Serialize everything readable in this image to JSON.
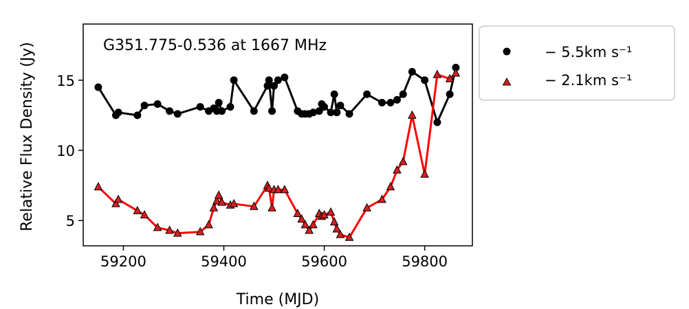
{
  "chart_data": {
    "type": "line",
    "title": "G351.775-0.536 at 1667 MHz",
    "xlabel": "Time (MJD)",
    "ylabel": "Relative Flux Density (Jy)",
    "xlim": [
      59120,
      59895
    ],
    "ylim": [
      3.2,
      19.0
    ],
    "xticks": [
      59200,
      59400,
      59600,
      59800
    ],
    "yticks": [
      5,
      10,
      15
    ],
    "grid": false,
    "legend_position": "outside-right-top",
    "series": [
      {
        "name": "− 5.5km s⁻¹",
        "color": "#000000",
        "marker": "circle",
        "x": [
          59150,
          59185,
          59190,
          59228,
          59242,
          59268,
          59292,
          59308,
          59353,
          59370,
          59380,
          59386,
          59390,
          59396,
          59413,
          59420,
          59460,
          59487,
          59490,
          59496,
          59500,
          59508,
          59521,
          59547,
          59555,
          59562,
          59570,
          59578,
          59590,
          59595,
          59600,
          59613,
          59620,
          59625,
          59632,
          59650,
          59685,
          59715,
          59732,
          59745,
          59757,
          59775,
          59800,
          59825,
          59850,
          59862
        ],
        "y": [
          14.5,
          12.5,
          12.7,
          12.5,
          13.2,
          13.3,
          12.8,
          12.6,
          13.1,
          12.8,
          13.0,
          12.8,
          13.4,
          12.8,
          13.1,
          15.0,
          12.8,
          14.6,
          15.0,
          12.8,
          14.6,
          15.0,
          15.2,
          12.8,
          12.6,
          12.6,
          12.6,
          12.7,
          12.8,
          13.3,
          13.1,
          12.7,
          14.0,
          12.7,
          13.2,
          12.6,
          14.0,
          13.4,
          13.4,
          13.6,
          14.0,
          15.6,
          15.0,
          12.0,
          14.0,
          15.9
        ]
      },
      {
        "name": "− 2.1km s⁻¹",
        "color": "#ff0000",
        "marker": "triangle",
        "x": [
          59150,
          59185,
          59190,
          59228,
          59242,
          59268,
          59292,
          59308,
          59353,
          59370,
          59380,
          59386,
          59390,
          59396,
          59413,
          59420,
          59460,
          59487,
          59490,
          59496,
          59500,
          59508,
          59521,
          59547,
          59555,
          59562,
          59570,
          59578,
          59590,
          59595,
          59600,
          59613,
          59620,
          59625,
          59632,
          59650,
          59685,
          59715,
          59732,
          59745,
          59757,
          59775,
          59800,
          59825,
          59850,
          59862
        ],
        "y": [
          7.4,
          6.2,
          6.5,
          5.7,
          5.4,
          4.5,
          4.3,
          4.1,
          4.2,
          4.7,
          5.9,
          6.4,
          6.8,
          6.3,
          6.1,
          6.2,
          6.0,
          7.5,
          7.3,
          5.9,
          7.2,
          7.2,
          7.2,
          5.5,
          5.1,
          4.7,
          4.3,
          4.7,
          5.5,
          5.3,
          5.4,
          5.6,
          4.9,
          4.4,
          4.0,
          3.8,
          5.9,
          6.5,
          7.4,
          8.6,
          9.2,
          12.5,
          8.3,
          15.4,
          15.1,
          15.5
        ]
      }
    ]
  }
}
